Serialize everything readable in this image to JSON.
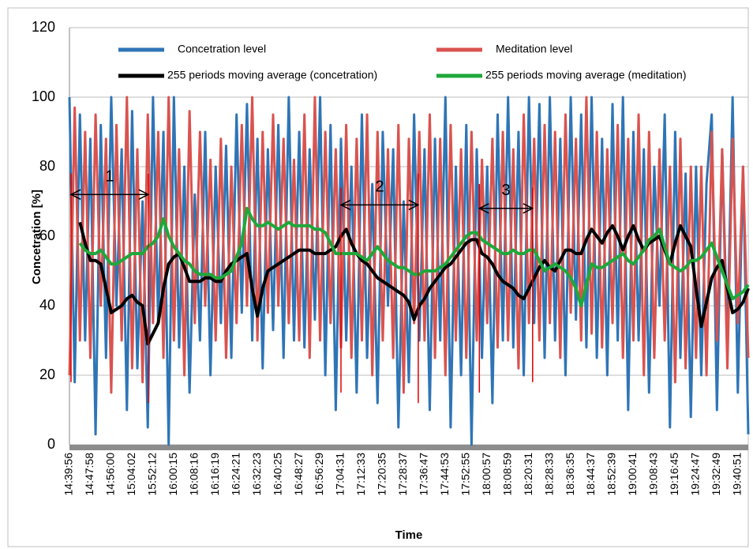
{
  "chart_data": {
    "type": "line",
    "xlabel": "Time",
    "ylabel": "Concetration [%]",
    "ylim": [
      0,
      120
    ],
    "yticks": [
      0,
      20,
      40,
      60,
      80,
      100,
      120
    ],
    "grid": true,
    "categories": [
      "14:39:56",
      null,
      null,
      null,
      "14:47:58",
      null,
      null,
      null,
      "14:56:00",
      null,
      null,
      null,
      "15:04:02",
      null,
      null,
      null,
      "15:52:12",
      null,
      null,
      null,
      "16:00:15",
      null,
      null,
      null,
      "16:08:16",
      null,
      null,
      null,
      "16:16:19",
      null,
      null,
      null,
      "16:24:21",
      null,
      null,
      null,
      "16:32:23",
      null,
      null,
      null,
      "16:40:25",
      null,
      null,
      null,
      "16:48:27",
      null,
      null,
      null,
      "16:56:29",
      null,
      null,
      null,
      "17:04:31",
      null,
      null,
      null,
      "17:12:33",
      null,
      null,
      null,
      "17:20:35",
      null,
      null,
      null,
      "17:28:37",
      null,
      null,
      null,
      "17:36:47",
      null,
      null,
      null,
      "17:44:53",
      null,
      null,
      null,
      "17:52:55",
      null,
      null,
      null,
      "18:00:57",
      null,
      null,
      null,
      "18:08:59",
      null,
      null,
      null,
      "18:20:31",
      null,
      null,
      null,
      "18:28:33",
      null,
      null,
      null,
      "18:36:35",
      null,
      null,
      null,
      "18:44:37",
      null,
      null,
      null,
      "18:52:39",
      null,
      null,
      null,
      "19:00:41",
      null,
      null,
      null,
      "19:08:43",
      null,
      null,
      null,
      "19:16:45",
      null,
      null,
      null,
      "19:24:47",
      null,
      null,
      null,
      "19:32:49",
      null,
      null,
      null,
      "19:40:51",
      null,
      null
    ],
    "series": [
      {
        "name": "Concetration level",
        "color": "#2e75b6",
        "width": 3,
        "values": [
          100,
          18,
          95,
          30,
          88,
          3,
          92,
          25,
          100,
          40,
          85,
          10,
          96,
          22,
          70,
          5,
          100,
          35,
          90,
          0,
          100,
          28,
          80,
          15,
          72,
          30,
          90,
          20,
          80,
          35,
          86,
          25,
          95,
          38,
          98,
          30,
          88,
          22,
          85,
          33,
          92,
          25,
          100,
          30,
          90,
          28,
          85,
          36,
          100,
          20,
          92,
          10,
          88,
          30,
          80,
          15,
          95,
          25,
          75,
          12,
          90,
          40,
          85,
          5,
          70,
          18,
          95,
          30,
          85,
          10,
          88,
          30,
          100,
          5,
          80,
          20,
          92,
          0,
          85,
          25,
          80,
          12,
          95,
          30,
          100,
          28,
          90,
          20,
          100,
          35,
          98,
          25,
          100,
          30,
          88,
          20,
          100,
          36,
          95,
          28,
          100,
          25,
          88,
          20,
          98,
          30,
          100,
          10,
          90,
          30,
          85,
          15,
          80,
          40,
          95,
          5,
          90,
          25,
          78,
          8,
          80,
          20,
          75,
          95,
          10,
          85,
          30,
          100,
          15,
          80,
          3
        ]
      },
      {
        "name": "Meditation level",
        "color": "#d9534f",
        "width": 3,
        "values": [
          20,
          97,
          30,
          90,
          25,
          95,
          40,
          88,
          15,
          92,
          30,
          100,
          22,
          85,
          18,
          95,
          35,
          90,
          25,
          100,
          30,
          85,
          20,
          96,
          35,
          90,
          40,
          82,
          30,
          88,
          25,
          80,
          35,
          92,
          40,
          100,
          30,
          90,
          38,
          95,
          40,
          88,
          35,
          82,
          30,
          95,
          25,
          100,
          30,
          90,
          35,
          85,
          28,
          92,
          25,
          88,
          30,
          95,
          20,
          90,
          30,
          85,
          25,
          92,
          15,
          88,
          35,
          90,
          30,
          95,
          25,
          88,
          20,
          92,
          30,
          85,
          25,
          90,
          30,
          82,
          35,
          88,
          28,
          90,
          30,
          85,
          22,
          95,
          35,
          88,
          30,
          92,
          35,
          90,
          25,
          95,
          38,
          88,
          30,
          100,
          32,
          90,
          28,
          85,
          35,
          92,
          25,
          88,
          30,
          95,
          20,
          90,
          25,
          85,
          30,
          80,
          18,
          88,
          22,
          80,
          25,
          80,
          20,
          90,
          30,
          85,
          22,
          88,
          35,
          80,
          25
        ]
      },
      {
        "name": "255 periods moving average (concetration)",
        "color": "#000000",
        "width": 4,
        "values": [
          null,
          null,
          64,
          58,
          53,
          53,
          52,
          45,
          38,
          39,
          40,
          42,
          43,
          41,
          40,
          29,
          32,
          35,
          45,
          52,
          54,
          55,
          51,
          47,
          47,
          47,
          48,
          48,
          47,
          47,
          50,
          52,
          53,
          54,
          55,
          45,
          37,
          45,
          50,
          51,
          52,
          53,
          54,
          55,
          56,
          56,
          56,
          55,
          55,
          55,
          56,
          57,
          60,
          62,
          58,
          55,
          53,
          52,
          50,
          48,
          47,
          46,
          45,
          44,
          43,
          41,
          36,
          40,
          42,
          45,
          47,
          49,
          51,
          52,
          54,
          56,
          58,
          59,
          59,
          55,
          54,
          52,
          49,
          47,
          46,
          45,
          43,
          42,
          45,
          48,
          51,
          53,
          51,
          50,
          53,
          56,
          56,
          55,
          55,
          59,
          62,
          60,
          58,
          61,
          63,
          60,
          56,
          60,
          63,
          59,
          56,
          58,
          59,
          60,
          56,
          52,
          58,
          63,
          60,
          57,
          45,
          34,
          41,
          48,
          51,
          53,
          45,
          38,
          39,
          41,
          45
        ]
      },
      {
        "name": "255 periods moving average (meditation)",
        "color": "#1fa83a",
        "width": 4,
        "values": [
          null,
          null,
          58,
          56,
          55,
          55,
          56,
          54,
          52,
          52,
          53,
          54,
          55,
          55,
          55,
          57,
          58,
          60,
          65,
          60,
          57,
          55,
          53,
          52,
          50,
          49,
          49,
          49,
          48,
          48,
          49,
          50,
          54,
          58,
          68,
          65,
          63,
          63,
          64,
          63,
          62,
          63,
          64,
          63,
          63,
          63,
          63,
          62,
          62,
          61,
          58,
          55,
          55,
          55,
          55,
          55,
          54,
          53,
          55,
          57,
          55,
          53,
          52,
          51,
          51,
          50,
          49,
          49,
          50,
          50,
          50,
          51,
          52,
          54,
          56,
          58,
          60,
          61,
          61,
          59,
          58,
          57,
          56,
          55,
          55,
          56,
          55,
          55,
          56,
          56,
          53,
          50,
          51,
          52,
          51,
          50,
          48,
          45,
          40,
          46,
          52,
          51,
          51,
          52,
          53,
          54,
          55,
          53,
          52,
          54,
          56,
          59,
          60,
          62,
          57,
          52,
          51,
          50,
          51,
          53,
          53,
          54,
          56,
          58,
          54,
          50,
          46,
          42,
          43,
          44,
          46
        ]
      }
    ],
    "annotations": [
      {
        "text": "1",
        "x": [
          0.3,
          15.1
        ],
        "y": 72
      },
      {
        "text": "2",
        "x": [
          52,
          66.8
        ],
        "y": 69
      },
      {
        "text": "3",
        "x": [
          78.5,
          88.7
        ],
        "y": 68
      }
    ],
    "markers": {
      "color": "#e00000",
      "lines": [
        {
          "x": 0.3,
          "y": [
            18,
            78
          ]
        },
        {
          "x": 15.1,
          "y": [
            12,
            78
          ]
        },
        {
          "x": 52,
          "y": [
            15,
            74
          ]
        },
        {
          "x": 66.8,
          "y": [
            12,
            78
          ]
        },
        {
          "x": 78.5,
          "y": [
            15,
            75
          ]
        },
        {
          "x": 88.7,
          "y": [
            18,
            74
          ]
        }
      ]
    }
  }
}
